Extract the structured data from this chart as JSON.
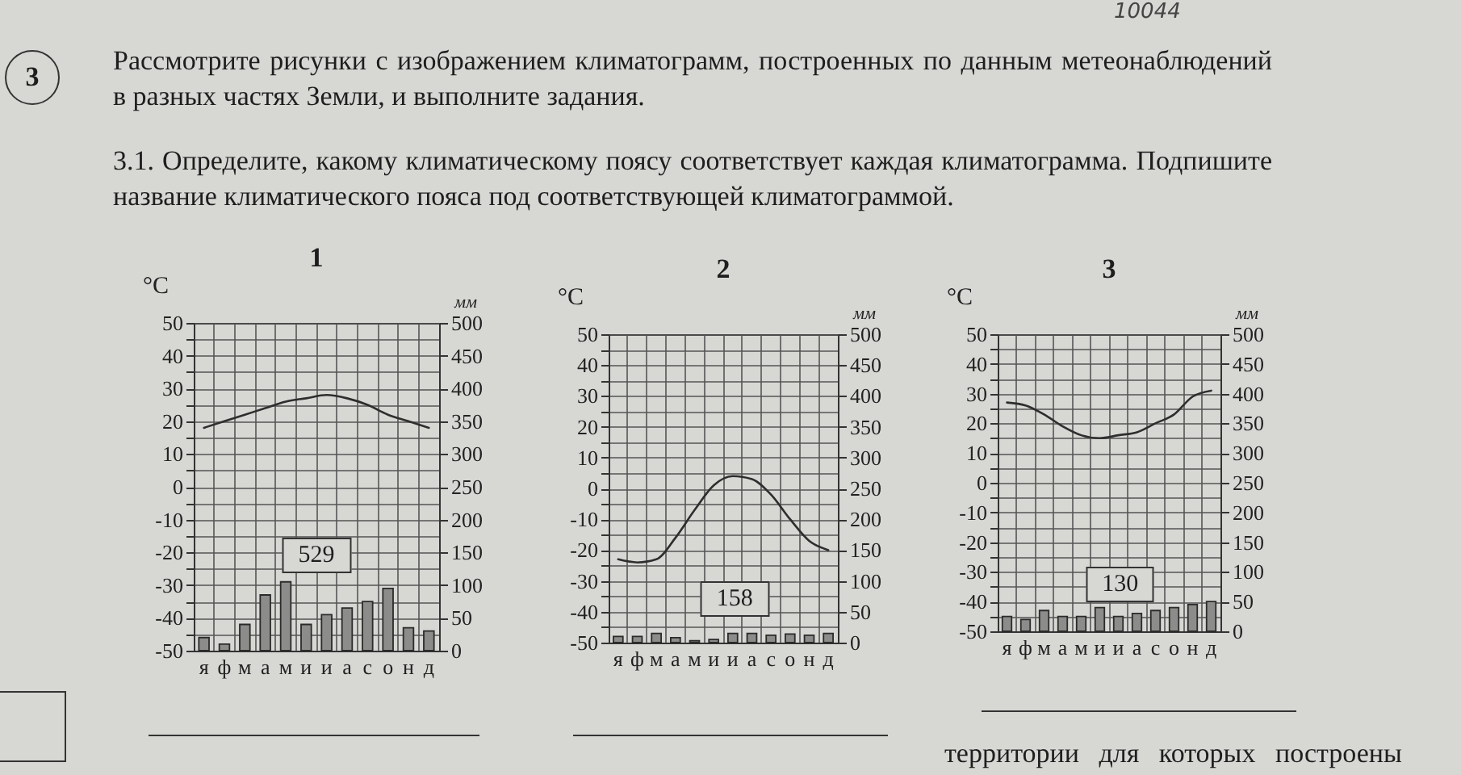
{
  "chart_data": [
    {
      "type": "other",
      "title": "Рассмотрите рисунки с изображением климатограмм, построенных по данным метеонаблюдений в разных частях Земли, и выполните задания.",
      "subtitle": "3.1. Определите, какому климатическому поясу соответствует каждая климатограмма. Подпишите название климатического пояса под соответствующей климатограммой.",
      "annotations": [
        "3",
        "10044",
        "территории для которых построены"
      ]
    },
    {
      "type": "bar",
      "title": "1",
      "categories": [
        "я",
        "ф",
        "м",
        "а",
        "м",
        "и",
        "и",
        "а",
        "с",
        "о",
        "н",
        "д"
      ],
      "ylabel": "°C",
      "y2label": "мм",
      "ylim": [
        -50,
        50
      ],
      "yticks": [
        -50,
        {
          "value": -45,
          "label": null
        },
        -40,
        {
          "value": -35,
          "label": null
        },
        -30,
        {
          "value": -25,
          "label": null
        },
        -20,
        {
          "value": -15,
          "label": null
        },
        -10,
        {
          "value": -5,
          "label": null
        },
        0,
        {
          "value": 5,
          "label": null
        },
        10,
        {
          "value": 15,
          "label": null
        },
        20,
        {
          "value": 25,
          "label": null
        },
        30,
        {
          "value": 35,
          "label": null
        },
        40,
        {
          "value": 45,
          "label": null
        },
        50
      ],
      "y2lim": [
        0,
        500
      ],
      "y2ticks": [
        0,
        50,
        100,
        150,
        200,
        250,
        300,
        350,
        400,
        450,
        500
      ],
      "grid": true,
      "annotations": [
        "529"
      ],
      "series": [
        {
          "type": "bar",
          "axis": "y2",
          "color": "#8c8c8a",
          "values": [
            20,
            10,
            40,
            85,
            105,
            40,
            55,
            65,
            75,
            95,
            35,
            30
          ]
        },
        {
          "type": "line",
          "color": "#2e2e2e",
          "values": [
            18,
            20,
            22,
            24,
            26,
            27,
            28,
            27,
            25,
            22,
            20,
            18
          ]
        }
      ]
    },
    {
      "type": "bar",
      "title": "2",
      "categories": [
        "я",
        "ф",
        "м",
        "а",
        "м",
        "и",
        "и",
        "а",
        "с",
        "о",
        "н",
        "д"
      ],
      "ylabel": "°C",
      "y2label": "мм",
      "ylim": [
        -50,
        50
      ],
      "yticks": [
        -50,
        {
          "value": -45,
          "label": null
        },
        -40,
        {
          "value": -35,
          "label": null
        },
        -30,
        {
          "value": -25,
          "label": null
        },
        -20,
        {
          "value": -15,
          "label": null
        },
        -10,
        {
          "value": -5,
          "label": null
        },
        0,
        {
          "value": 5,
          "label": null
        },
        10,
        {
          "value": 15,
          "label": null
        },
        20,
        {
          "value": 25,
          "label": null
        },
        30,
        {
          "value": 35,
          "label": null
        },
        40,
        {
          "value": 45,
          "label": null
        },
        50
      ],
      "y2lim": [
        0,
        500
      ],
      "y2ticks": [
        0,
        50,
        100,
        150,
        200,
        250,
        300,
        350,
        400,
        450,
        500
      ],
      "grid": true,
      "annotations": [
        "158"
      ],
      "series": [
        {
          "type": "bar",
          "axis": "y2",
          "color": "#8c8c8a",
          "values": [
            10,
            10,
            15,
            8,
            3,
            5,
            15,
            15,
            12,
            14,
            12,
            15
          ]
        },
        {
          "type": "line",
          "color": "#2e2e2e",
          "values": [
            -23,
            -24,
            -23,
            -16,
            -7,
            1,
            4,
            3,
            -2,
            -10,
            -17,
            -20
          ]
        }
      ]
    },
    {
      "type": "bar",
      "title": "3",
      "categories": [
        "я",
        "ф",
        "м",
        "а",
        "м",
        "и",
        "и",
        "а",
        "с",
        "о",
        "н",
        "д"
      ],
      "ylabel": "°C",
      "y2label": "мм",
      "ylim": [
        -50,
        50
      ],
      "yticks": [
        -50,
        {
          "value": -45,
          "label": null
        },
        -40,
        {
          "value": -35,
          "label": null
        },
        -30,
        {
          "value": -25,
          "label": null
        },
        -20,
        {
          "value": -15,
          "label": null
        },
        -10,
        {
          "value": -5,
          "label": null
        },
        0,
        {
          "value": 5,
          "label": null
        },
        10,
        {
          "value": 15,
          "label": null
        },
        20,
        {
          "value": 25,
          "label": null
        },
        30,
        {
          "value": 35,
          "label": null
        },
        40,
        {
          "value": 45,
          "label": null
        },
        50
      ],
      "y2lim": [
        0,
        500
      ],
      "y2ticks": [
        0,
        50,
        100,
        150,
        200,
        250,
        300,
        350,
        400,
        450,
        500
      ],
      "grid": true,
      "annotations": [
        "130"
      ],
      "series": [
        {
          "type": "bar",
          "axis": "y2",
          "color": "#8c8c8a",
          "values": [
            25,
            20,
            35,
            25,
            25,
            40,
            25,
            30,
            35,
            40,
            45,
            50
          ]
        },
        {
          "type": "line",
          "color": "#2e2e2e",
          "values": [
            27,
            26,
            23,
            19,
            16,
            15,
            16,
            17,
            20,
            23,
            29,
            31
          ]
        }
      ]
    }
  ]
}
